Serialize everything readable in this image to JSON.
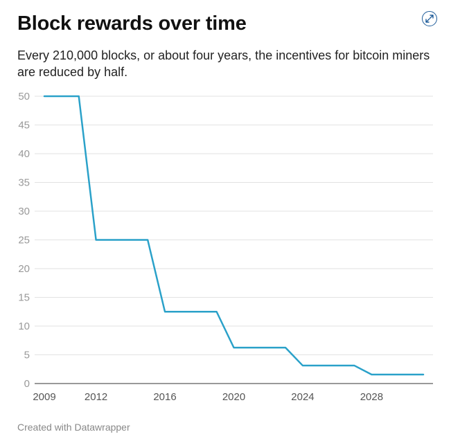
{
  "title": "Block rewards over time",
  "subtitle": "Every 210,000 blocks, or about four years, the incentives for bitcoin miners are reduced by half.",
  "footer": "Created with Datawrapper",
  "expand_icon": "expand-arrows-icon",
  "colors": {
    "line": "#2aa1c9",
    "grid": "#e2e2e2",
    "axis": "#333333",
    "tick_label": "#999999",
    "x_tick_label": "#555555",
    "expand": "#1d5b99"
  },
  "chart_data": {
    "type": "line",
    "title": "Block rewards over time",
    "xlabel": "",
    "ylabel": "",
    "xlim": [
      2009,
      2031
    ],
    "ylim": [
      0,
      50
    ],
    "x_ticks": [
      2009,
      2012,
      2016,
      2020,
      2024,
      2028
    ],
    "y_ticks": [
      0,
      5,
      10,
      15,
      20,
      25,
      30,
      35,
      40,
      45,
      50
    ],
    "grid": true,
    "legend": "none",
    "series": [
      {
        "x": [
          2009,
          2011,
          2012,
          2015,
          2016,
          2019,
          2020,
          2023,
          2024,
          2027,
          2028,
          2031
        ],
        "y": [
          50,
          50,
          25,
          25,
          12.5,
          12.5,
          6.25,
          6.25,
          3.125,
          3.125,
          1.5625,
          1.5625
        ]
      }
    ]
  }
}
